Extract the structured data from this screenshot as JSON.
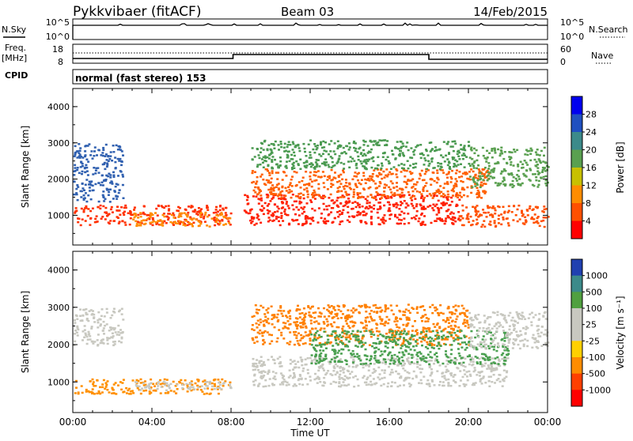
{
  "header": {
    "station": "Pykkvibaer (fitACF)",
    "beam": "Beam 03",
    "date": "14/Feb/2015"
  },
  "nsky_panel": {
    "left_label": "N.Sky",
    "left_ticks": [
      "10^5",
      "10^0"
    ],
    "right_ticks": [
      "10^5",
      "10^0"
    ],
    "right_label": "N.Search"
  },
  "freq_panel": {
    "left_label_1": "Freq.",
    "left_label_2": "[MHz]",
    "left_ticks": [
      "18",
      "8"
    ],
    "right_ticks": [
      "60",
      "0"
    ],
    "right_label": "Nave",
    "cpid_label": "CPID",
    "cpid_text": "normal (fast stereo) 153"
  },
  "chart_data": [
    {
      "type": "heatmap",
      "title": "",
      "quantity": "Power",
      "ylabel": "Slant Range [km]",
      "ylim": [
        180,
        4500
      ],
      "y_ticks": [
        "1000",
        "2000",
        "3000",
        "4000"
      ],
      "colorbar_label": "Power [dB]",
      "colorbar_ticks": [
        "28",
        "24",
        "20",
        "16",
        "12",
        "8",
        "4"
      ],
      "colors": [
        "#0000ee",
        "#2050c0",
        "#3c8a8a",
        "#5aa050",
        "#c8c000",
        "#ff8c00",
        "#ff5000",
        "#ff0000"
      ],
      "bands": [
        {
          "t0": 0.0,
          "t1": 8.0,
          "r0": 750,
          "r1": 1300,
          "color": "#ff3000"
        },
        {
          "t0": 3.0,
          "t1": 8.0,
          "r0": 700,
          "r1": 1100,
          "color": "#ff8c00"
        },
        {
          "t0": 8.6,
          "t1": 19.5,
          "r0": 750,
          "r1": 1600,
          "color": "#ff2000"
        },
        {
          "t0": 9.0,
          "t1": 21.0,
          "r0": 1500,
          "r1": 2300,
          "color": "#ff6000"
        },
        {
          "t0": 9.0,
          "t1": 20.0,
          "r0": 2300,
          "r1": 3100,
          "color": "#4a9a50"
        },
        {
          "t0": 0.0,
          "t1": 2.5,
          "r0": 1400,
          "r1": 3000,
          "color": "#3060b0"
        },
        {
          "t0": 19.5,
          "t1": 24.0,
          "r0": 700,
          "r1": 1300,
          "color": "#ff5000"
        },
        {
          "t0": 20.0,
          "t1": 24.0,
          "r0": 1800,
          "r1": 2900,
          "color": "#5aa050"
        }
      ]
    },
    {
      "type": "heatmap",
      "title": "",
      "quantity": "Velocity",
      "ylabel": "Slant Range [km]",
      "ylim": [
        180,
        4500
      ],
      "y_ticks": [
        "1000",
        "2000",
        "3000",
        "4000"
      ],
      "colorbar_label": "Velocity [m s⁻¹]",
      "colorbar_ticks": [
        "1000",
        "500",
        "100",
        "25",
        "-25",
        "-100",
        "-500",
        "-1000"
      ],
      "colors": [
        "#2040b0",
        "#3c8a8a",
        "#50a040",
        "#c8c8c0",
        "#c8c8c0",
        "#ffd000",
        "#ff8c00",
        "#ff4000",
        "#ff0000"
      ],
      "bands": [
        {
          "t0": 9.0,
          "t1": 22.0,
          "r0": 900,
          "r1": 1700,
          "color": "#c8c8c0"
        },
        {
          "t0": 0.0,
          "t1": 8.0,
          "r0": 700,
          "r1": 1100,
          "color": "#ff9000"
        },
        {
          "t0": 3.0,
          "t1": 8.0,
          "r0": 800,
          "r1": 1050,
          "color": "#c8c8c0"
        },
        {
          "t0": 9.0,
          "t1": 20.0,
          "r0": 2000,
          "r1": 3100,
          "color": "#ff8000"
        },
        {
          "t0": 12.0,
          "t1": 22.0,
          "r0": 1500,
          "r1": 2400,
          "color": "#4aa050"
        },
        {
          "t0": 0.0,
          "t1": 2.5,
          "r0": 2000,
          "r1": 3000,
          "color": "#c8c8c0"
        },
        {
          "t0": 20.0,
          "t1": 24.0,
          "r0": 1900,
          "r1": 2900,
          "color": "#c8c8c0"
        }
      ]
    }
  ],
  "time_axis": {
    "label": "Time UT",
    "ticks": [
      "00:00",
      "04:00",
      "08:00",
      "12:00",
      "16:00",
      "20:00",
      "00:00"
    ]
  }
}
